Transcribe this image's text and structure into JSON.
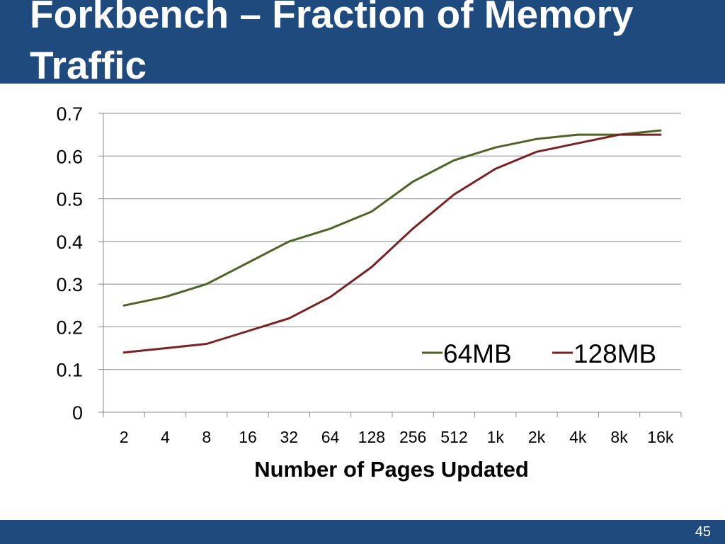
{
  "slide": {
    "title": "Forkbench – Fraction of Memory Traffic",
    "page_number": "45"
  },
  "colors": {
    "header_bar": "#1f4a7d",
    "footer_bar": "#1f4a7d",
    "grid": "#888888",
    "series_64mb": "#4f6228",
    "series_128mb": "#772324"
  },
  "chart_data": {
    "type": "line",
    "title": "",
    "xlabel": "Number of Pages Updated",
    "ylabel": "",
    "categories": [
      "2",
      "4",
      "8",
      "16",
      "32",
      "64",
      "128",
      "256",
      "512",
      "1k",
      "2k",
      "4k",
      "8k",
      "16k"
    ],
    "ylim": [
      0,
      0.7
    ],
    "yticks": [
      "0",
      "0.1",
      "0.2",
      "0.3",
      "0.4",
      "0.5",
      "0.6",
      "0.7"
    ],
    "grid": true,
    "legend": "inside, lower-right",
    "series": [
      {
        "name": "64MB",
        "color": "#4f6228",
        "values": [
          0.25,
          0.27,
          0.3,
          0.35,
          0.4,
          0.43,
          0.47,
          0.54,
          0.59,
          0.62,
          0.64,
          0.65,
          0.65,
          0.66
        ]
      },
      {
        "name": "128MB",
        "color": "#772324",
        "values": [
          0.14,
          0.15,
          0.16,
          0.19,
          0.22,
          0.27,
          0.34,
          0.43,
          0.51,
          0.57,
          0.61,
          0.63,
          0.65,
          0.65
        ]
      }
    ]
  }
}
